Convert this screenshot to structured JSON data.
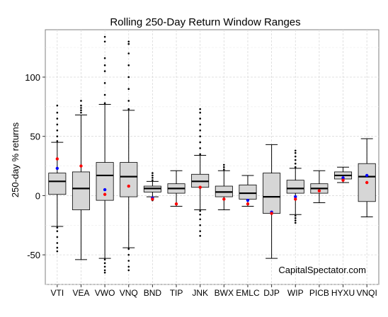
{
  "chart_data": {
    "type": "boxplot",
    "title": "Rolling 250-Day Return Window Ranges",
    "xlabel": "",
    "ylabel": "250-day % returns",
    "ylim": [
      -75,
      140
    ],
    "yticks": [
      -50,
      0,
      50,
      100
    ],
    "grid": true,
    "watermark": "CapitalSpectator.com",
    "colors": {
      "box_fill": "#d6d6d6",
      "median": "#000000",
      "blue_marker": "#0000ff",
      "red_marker": "#ff0000",
      "grid": "#d9d9d9"
    },
    "categories": [
      "VTI",
      "VEA",
      "VWO",
      "VNQ",
      "BND",
      "TIP",
      "JNK",
      "BWX",
      "EMLC",
      "DJP",
      "WIP",
      "PICB",
      "HYXU",
      "VNQI"
    ],
    "boxes": [
      {
        "name": "VTI",
        "low": -26,
        "q1": 1,
        "median": 12,
        "q3": 19,
        "high": 45,
        "blue": 23,
        "red": 31,
        "outliers_high": [
          46,
          50,
          55,
          60,
          65,
          70,
          76
        ],
        "outliers_low": [
          -27,
          -30,
          -35,
          -40,
          -44,
          -47
        ]
      },
      {
        "name": "VEA",
        "low": -54,
        "q1": -12,
        "median": 6,
        "q3": 20,
        "high": 68,
        "blue": null,
        "red": 25,
        "outliers_high": [
          70,
          72,
          74,
          76,
          80
        ],
        "outliers_low": []
      },
      {
        "name": "VWO",
        "low": -53,
        "q1": -4,
        "median": 17,
        "q3": 28,
        "high": 77,
        "blue": 5,
        "red": 1,
        "outliers_high": [
          78,
          85,
          95,
          105,
          110,
          116,
          130,
          134
        ],
        "outliers_low": [
          -54,
          -57,
          -60,
          -63,
          -65
        ]
      },
      {
        "name": "VNQ",
        "low": -44,
        "q1": -1,
        "median": 16,
        "q3": 28,
        "high": 72,
        "blue": null,
        "red": 8,
        "outliers_high": [
          73,
          80,
          90,
          100,
          110,
          120,
          128,
          130
        ],
        "outliers_low": [
          -45,
          -50,
          -55,
          -60,
          -63
        ]
      },
      {
        "name": "BND",
        "low": -1,
        "q1": 3,
        "median": 6,
        "q3": 8,
        "high": 12,
        "blue": -2,
        "red": -3,
        "outliers_high": [
          13,
          15,
          17,
          19
        ],
        "outliers_low": [
          -2,
          -3,
          -4
        ]
      },
      {
        "name": "TIP",
        "low": -9,
        "q1": 2,
        "median": 6,
        "q3": 10,
        "high": 21,
        "blue": null,
        "red": -7,
        "outliers_high": [],
        "outliers_low": []
      },
      {
        "name": "JNK",
        "low": -12,
        "q1": 7,
        "median": 12,
        "q3": 18,
        "high": 34,
        "blue": null,
        "red": 7,
        "outliers_high": [
          35,
          40,
          45,
          50,
          55,
          60,
          65,
          70,
          73
        ],
        "outliers_low": [
          -13,
          -16,
          -20,
          -25,
          -30,
          -34
        ]
      },
      {
        "name": "BWX",
        "low": -12,
        "q1": -1,
        "median": 3,
        "q3": 8,
        "high": 21,
        "blue": null,
        "red": -3,
        "outliers_high": [
          22,
          24,
          26
        ],
        "outliers_low": []
      },
      {
        "name": "EMLC",
        "low": -9,
        "q1": -3,
        "median": 2,
        "q3": 9,
        "high": 17,
        "blue": -4,
        "red": -7,
        "outliers_high": [],
        "outliers_low": []
      },
      {
        "name": "DJP",
        "low": -53,
        "q1": -15,
        "median": -1,
        "q3": 19,
        "high": 43,
        "blue": -14,
        "red": -15,
        "outliers_high": [],
        "outliers_low": []
      },
      {
        "name": "WIP",
        "low": -16,
        "q1": 2,
        "median": 6,
        "q3": 13,
        "high": 23,
        "blue": -1,
        "red": -3,
        "outliers_high": [
          24,
          27,
          30,
          33,
          36,
          38
        ],
        "outliers_low": [
          -17,
          -19,
          -21,
          -23
        ]
      },
      {
        "name": "PICB",
        "low": -6,
        "q1": 2,
        "median": 6,
        "q3": 10,
        "high": 21,
        "blue": null,
        "red": 4,
        "outliers_high": [],
        "outliers_low": []
      },
      {
        "name": "HYXU",
        "low": 11,
        "q1": 14,
        "median": 17,
        "q3": 20,
        "high": 24,
        "blue": 15,
        "red": 13,
        "outliers_high": [],
        "outliers_low": []
      },
      {
        "name": "VNQI",
        "low": -18,
        "q1": -5,
        "median": 16,
        "q3": 27,
        "high": 48,
        "blue": 17,
        "red": 11,
        "outliers_high": [],
        "outliers_low": []
      }
    ]
  }
}
